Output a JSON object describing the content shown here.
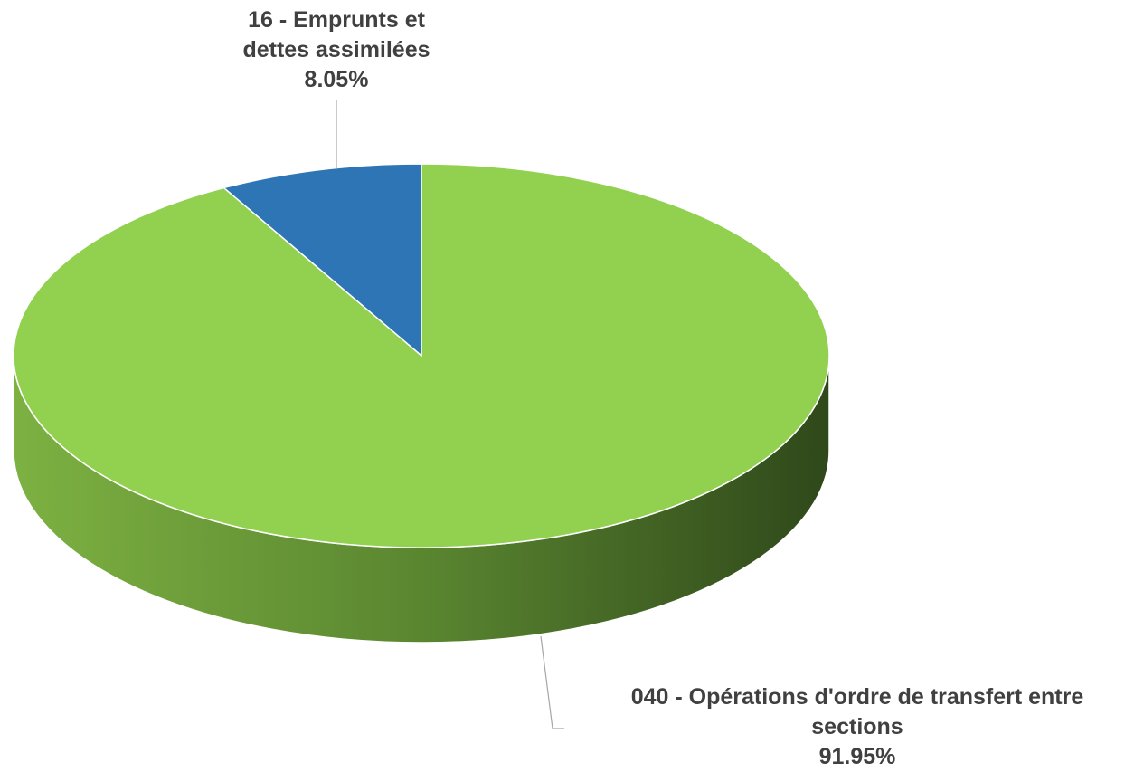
{
  "chart_data": {
    "type": "pie",
    "categories": [
      "16 - Emprunts et dettes assimilées",
      "040 - Opérations d'ordre de transfert entre sections"
    ],
    "values": [
      8.05,
      91.95
    ],
    "value_labels": [
      "8.05%",
      "91.95%"
    ],
    "colors": [
      "#2e75b6",
      "#92d050"
    ]
  }
}
